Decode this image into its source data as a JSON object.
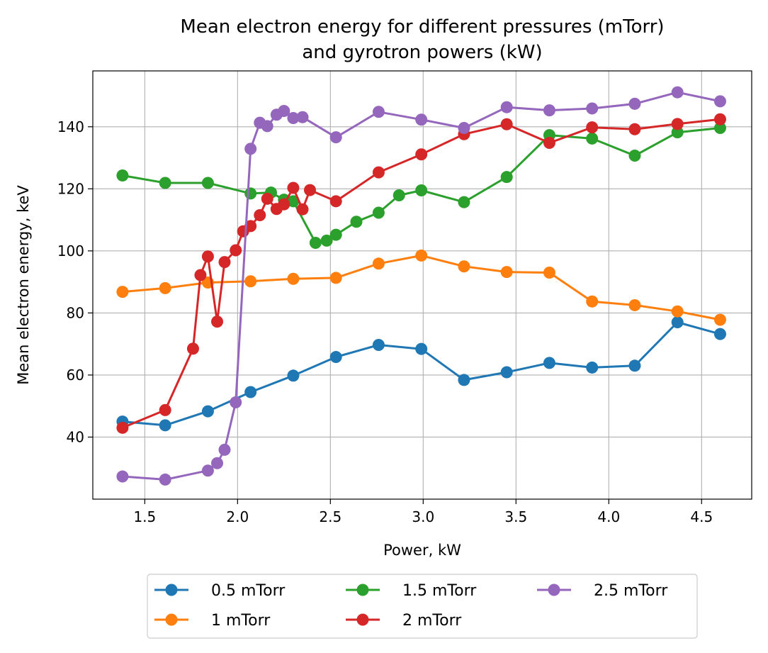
{
  "chart_data": {
    "type": "line",
    "title_lines": [
      "Mean electron energy for different pressures (mTorr)",
      "and gyrotron powers (kW)"
    ],
    "xlabel": "Power, kW",
    "ylabel": "Mean electron energy, keV",
    "xlim": [
      1.22,
      4.77
    ],
    "ylim": [
      20,
      158
    ],
    "xticks": [
      1.5,
      2.0,
      2.5,
      3.0,
      3.5,
      4.0,
      4.5
    ],
    "xtick_labels": [
      "1.5",
      "2.0",
      "2.5",
      "3.0",
      "3.5",
      "4.0",
      "4.5"
    ],
    "yticks": [
      40,
      60,
      80,
      100,
      120,
      140
    ],
    "ytick_labels": [
      "40",
      "60",
      "80",
      "100",
      "120",
      "140"
    ],
    "grid": true,
    "legend_position": "bottom-center",
    "series": [
      {
        "name": "0.5 mTorr",
        "color": "#1f77b4",
        "x": [
          1.38,
          1.61,
          1.84,
          2.07,
          2.3,
          2.53,
          2.76,
          2.99,
          3.22,
          3.45,
          3.68,
          3.91,
          4.14,
          4.37,
          4.6
        ],
        "y": [
          45.0,
          43.8,
          48.3,
          54.5,
          59.8,
          65.8,
          69.7,
          68.4,
          58.4,
          60.9,
          63.9,
          62.4,
          63.0,
          77.0,
          73.2
        ]
      },
      {
        "name": "1 mTorr",
        "color": "#ff7f0e",
        "x": [
          1.38,
          1.61,
          1.84,
          2.07,
          2.3,
          2.53,
          2.76,
          2.99,
          3.22,
          3.45,
          3.68,
          3.91,
          4.14,
          4.37,
          4.6
        ],
        "y": [
          86.8,
          88.0,
          89.8,
          90.2,
          91.0,
          91.3,
          95.9,
          98.5,
          95.0,
          93.2,
          93.0,
          83.7,
          82.5,
          80.5,
          77.8
        ]
      },
      {
        "name": "1.5 mTorr",
        "color": "#2ca02c",
        "x": [
          1.38,
          1.61,
          1.84,
          2.07,
          2.18,
          2.25,
          2.3,
          2.42,
          2.48,
          2.53,
          2.64,
          2.76,
          2.87,
          2.99,
          3.22,
          3.45,
          3.68,
          3.91,
          4.14,
          4.37,
          4.6
        ],
        "y": [
          124.3,
          121.9,
          121.9,
          118.5,
          118.8,
          116.5,
          116.0,
          102.6,
          103.3,
          105.2,
          109.4,
          112.3,
          117.9,
          119.5,
          115.7,
          123.8,
          137.3,
          136.2,
          130.7,
          138.2,
          139.6
        ]
      },
      {
        "name": "2 mTorr",
        "color": "#d62728",
        "x": [
          1.38,
          1.61,
          1.76,
          1.8,
          1.84,
          1.89,
          1.93,
          1.99,
          2.03,
          2.07,
          2.12,
          2.16,
          2.21,
          2.25,
          2.3,
          2.35,
          2.39,
          2.53,
          2.76,
          2.99,
          3.22,
          3.45,
          3.68,
          3.91,
          4.14,
          4.37,
          4.6
        ],
        "y": [
          43.0,
          48.7,
          68.5,
          92.2,
          98.2,
          77.2,
          96.4,
          100.2,
          106.3,
          108.0,
          111.5,
          116.8,
          113.5,
          115.0,
          120.3,
          113.4,
          119.6,
          116.0,
          125.3,
          131.1,
          137.6,
          140.8,
          134.8,
          139.8,
          139.2,
          140.9,
          142.4
        ]
      },
      {
        "name": "2.5 mTorr",
        "color": "#9467bd",
        "x": [
          1.38,
          1.61,
          1.84,
          1.89,
          1.93,
          1.99,
          2.07,
          2.12,
          2.16,
          2.21,
          2.25,
          2.3,
          2.35,
          2.53,
          2.76,
          2.99,
          3.22,
          3.45,
          3.68,
          3.91,
          4.14,
          4.37,
          4.6
        ],
        "y": [
          27.3,
          26.3,
          29.2,
          31.6,
          35.9,
          51.2,
          132.9,
          141.3,
          140.2,
          143.9,
          145.1,
          142.8,
          143.1,
          136.6,
          144.8,
          142.3,
          139.6,
          146.3,
          145.3,
          145.9,
          147.4,
          151.1,
          148.2
        ]
      }
    ]
  }
}
